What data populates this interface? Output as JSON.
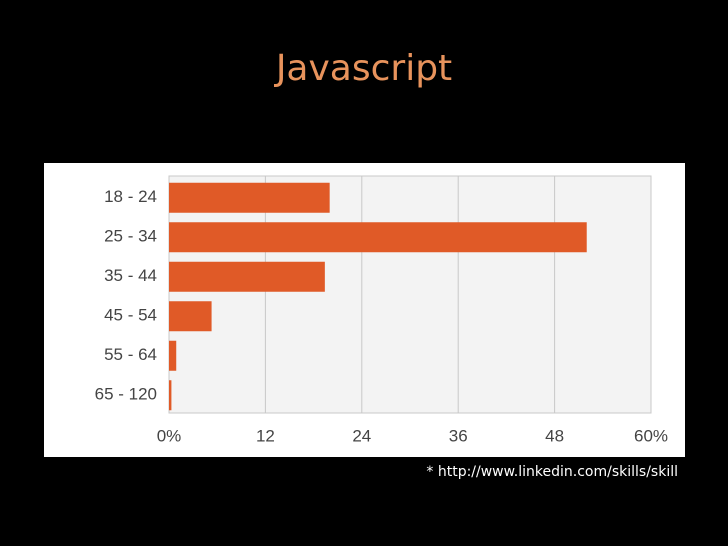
{
  "chart_data": {
    "type": "bar",
    "orientation": "horizontal",
    "title": "Javascript",
    "categories": [
      "18 - 24",
      "25 - 34",
      "35 - 44",
      "45 - 54",
      "55 - 64",
      "65 - 120"
    ],
    "values": [
      20,
      52,
      19.4,
      5.3,
      0.9,
      0.3
    ],
    "color": "#e05a27",
    "xlim": [
      0,
      60
    ],
    "xticks": [
      {
        "value": 0,
        "label": "0%"
      },
      12,
      24,
      36,
      48,
      {
        "value": 60,
        "label": "60%"
      }
    ],
    "grid": true,
    "note": "* http://www.linkedin.com/skills/skill"
  }
}
